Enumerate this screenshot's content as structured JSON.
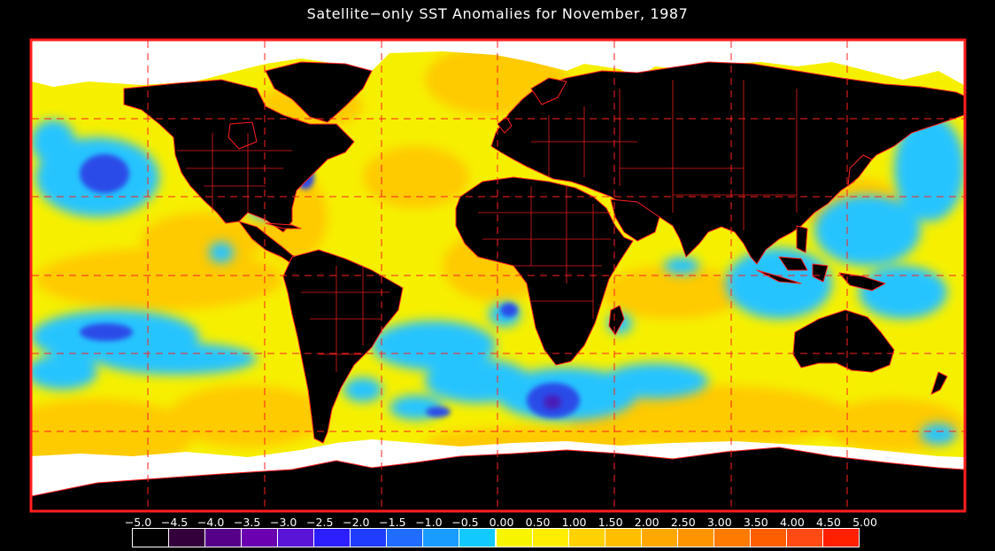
{
  "title": "Satellite−only SST Anomalies for November, 1987",
  "colorbar": {
    "labels": [
      "−5.0",
      "−4.5",
      "−4.0",
      "−3.5",
      "−3.0",
      "−2.5",
      "−2.0",
      "−1.5",
      "−1.0",
      "−0.5",
      "0.00",
      "0.50",
      "1.00",
      "1.50",
      "2.00",
      "2.50",
      "3.00",
      "3.50",
      "4.00",
      "4.50",
      "5.00"
    ],
    "colors": [
      "#000000",
      "#33003b",
      "#56008a",
      "#6a00b0",
      "#5a14d8",
      "#2d1eff",
      "#1f3cff",
      "#1f6cff",
      "#189cff",
      "#12caff",
      "#f7f600",
      "#ffee00",
      "#ffd200",
      "#ffbf00",
      "#ffa900",
      "#ff9400",
      "#ff7a00",
      "#ff5e00",
      "#ff4a14",
      "#ff2000"
    ]
  },
  "colors": {
    "land": "#000000",
    "ice": "#ffffff",
    "border": "#ff2020",
    "grid": "#ff2020",
    "ocean_warm": "#ffd400",
    "ocean_neutral": "#f2f200",
    "ocean_cool": "#20c8ff",
    "ocean_cold": "#2050f0"
  }
}
